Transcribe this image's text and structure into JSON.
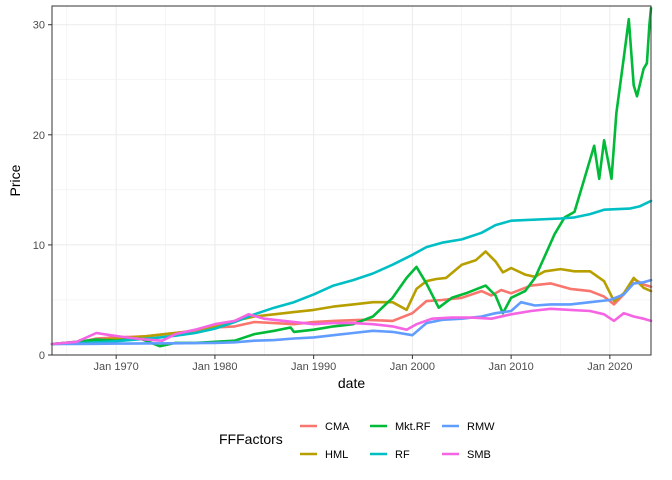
{
  "chart_data": {
    "type": "line",
    "xlabel": "date",
    "ylabel": "Price",
    "xlim": [
      "1963-07",
      "2024-03"
    ],
    "ylim": [
      0,
      31.7
    ],
    "x_ticks": [
      {
        "date": "1970-01",
        "label": "Jan 1970"
      },
      {
        "date": "1980-01",
        "label": "Jan 1980"
      },
      {
        "date": "1990-01",
        "label": "Jan 1990"
      },
      {
        "date": "2000-01",
        "label": "Jan 2000"
      },
      {
        "date": "2010-01",
        "label": "Jan 2010"
      },
      {
        "date": "2020-01",
        "label": "Jan 2020"
      }
    ],
    "y_ticks": [
      0,
      10,
      20,
      30
    ],
    "grid": true,
    "legend": {
      "title": "FFFactors",
      "position": "bottom",
      "entries": [
        "CMA",
        "HML",
        "Mkt.RF",
        "RF",
        "RMW",
        "SMB"
      ]
    },
    "series": [
      {
        "name": "CMA",
        "color": "#F8766D",
        "points": [
          [
            "1963-07",
            1.0
          ],
          [
            "1966-01",
            1.1
          ],
          [
            "1968-01",
            1.5
          ],
          [
            "1970-01",
            1.6
          ],
          [
            "1973-01",
            1.7
          ],
          [
            "1975-01",
            1.9
          ],
          [
            "1978-01",
            2.2
          ],
          [
            "1980-01",
            2.5
          ],
          [
            "1982-01",
            2.6
          ],
          [
            "1984-01",
            3.0
          ],
          [
            "1986-01",
            2.9
          ],
          [
            "1988-01",
            2.8
          ],
          [
            "1990-01",
            3.0
          ],
          [
            "1992-01",
            3.1
          ],
          [
            "1995-01",
            3.2
          ],
          [
            "1998-01",
            3.1
          ],
          [
            "2000-01",
            3.8
          ],
          [
            "2001-06",
            4.9
          ],
          [
            "2003-01",
            5.0
          ],
          [
            "2005-01",
            5.2
          ],
          [
            "2007-01",
            5.8
          ],
          [
            "2008-01",
            5.4
          ],
          [
            "2009-01",
            5.9
          ],
          [
            "2010-01",
            5.6
          ],
          [
            "2012-01",
            6.3
          ],
          [
            "2014-01",
            6.5
          ],
          [
            "2016-01",
            6.0
          ],
          [
            "2018-01",
            5.8
          ],
          [
            "2019-06",
            5.3
          ],
          [
            "2020-06",
            4.6
          ],
          [
            "2021-06",
            5.5
          ],
          [
            "2022-06",
            6.9
          ],
          [
            "2023-06",
            6.4
          ],
          [
            "2024-03",
            6.2
          ]
        ]
      },
      {
        "name": "HML",
        "color": "#B79F00",
        "points": [
          [
            "1963-07",
            1.0
          ],
          [
            "1966-01",
            1.2
          ],
          [
            "1968-01",
            1.3
          ],
          [
            "1970-01",
            1.5
          ],
          [
            "1973-01",
            1.7
          ],
          [
            "1975-01",
            1.9
          ],
          [
            "1977-01",
            2.1
          ],
          [
            "1980-01",
            2.6
          ],
          [
            "1982-01",
            3.1
          ],
          [
            "1984-01",
            3.5
          ],
          [
            "1986-01",
            3.7
          ],
          [
            "1988-01",
            3.9
          ],
          [
            "1990-01",
            4.1
          ],
          [
            "1992-01",
            4.4
          ],
          [
            "1994-01",
            4.6
          ],
          [
            "1996-01",
            4.8
          ],
          [
            "1998-01",
            4.8
          ],
          [
            "1999-06",
            4.1
          ],
          [
            "2000-06",
            6.0
          ],
          [
            "2001-06",
            6.7
          ],
          [
            "2002-06",
            6.9
          ],
          [
            "2003-06",
            7.0
          ],
          [
            "2005-01",
            8.2
          ],
          [
            "2006-06",
            8.6
          ],
          [
            "2007-06",
            9.4
          ],
          [
            "2008-06",
            8.5
          ],
          [
            "2009-03",
            7.5
          ],
          [
            "2010-01",
            7.9
          ],
          [
            "2011-06",
            7.3
          ],
          [
            "2012-06",
            7.1
          ],
          [
            "2013-06",
            7.6
          ],
          [
            "2015-01",
            7.8
          ],
          [
            "2016-06",
            7.6
          ],
          [
            "2018-01",
            7.6
          ],
          [
            "2019-06",
            6.7
          ],
          [
            "2020-06",
            4.9
          ],
          [
            "2021-06",
            5.6
          ],
          [
            "2022-06",
            7.0
          ],
          [
            "2023-06",
            6.1
          ],
          [
            "2024-03",
            5.8
          ]
        ]
      },
      {
        "name": "Mkt.RF",
        "color": "#00BA38",
        "points": [
          [
            "1963-07",
            1.0
          ],
          [
            "1966-01",
            1.2
          ],
          [
            "1968-01",
            1.4
          ],
          [
            "1970-01",
            1.3
          ],
          [
            "1972-06",
            1.5
          ],
          [
            "1974-06",
            0.8
          ],
          [
            "1976-01",
            1.1
          ],
          [
            "1978-01",
            1.1
          ],
          [
            "1980-01",
            1.2
          ],
          [
            "1982-01",
            1.3
          ],
          [
            "1984-01",
            1.9
          ],
          [
            "1986-01",
            2.2
          ],
          [
            "1987-09",
            2.5
          ],
          [
            "1988-01",
            2.1
          ],
          [
            "1990-01",
            2.3
          ],
          [
            "1992-01",
            2.6
          ],
          [
            "1994-01",
            2.8
          ],
          [
            "1996-01",
            3.5
          ],
          [
            "1998-01",
            5.2
          ],
          [
            "1999-06",
            7.0
          ],
          [
            "2000-06",
            8.0
          ],
          [
            "2001-06",
            6.5
          ],
          [
            "2002-09",
            4.3
          ],
          [
            "2004-01",
            5.2
          ],
          [
            "2005-06",
            5.6
          ],
          [
            "2007-06",
            6.3
          ],
          [
            "2008-06",
            5.4
          ],
          [
            "2009-03",
            3.8
          ],
          [
            "2010-01",
            5.2
          ],
          [
            "2011-06",
            5.8
          ],
          [
            "2012-06",
            7.0
          ],
          [
            "2013-06",
            9.0
          ],
          [
            "2014-06",
            11.0
          ],
          [
            "2015-06",
            12.5
          ],
          [
            "2016-06",
            13.0
          ],
          [
            "2017-06",
            16.0
          ],
          [
            "2018-06",
            19.0
          ],
          [
            "2018-12",
            16.0
          ],
          [
            "2019-06",
            19.5
          ],
          [
            "2020-03",
            16.0
          ],
          [
            "2020-09",
            22.0
          ],
          [
            "2021-06",
            27.0
          ],
          [
            "2021-12",
            30.5
          ],
          [
            "2022-06",
            24.5
          ],
          [
            "2022-10",
            23.5
          ],
          [
            "2023-06",
            26.0
          ],
          [
            "2023-10",
            26.5
          ],
          [
            "2024-01",
            30.0
          ],
          [
            "2024-03",
            31.5
          ]
        ]
      },
      {
        "name": "RF",
        "color": "#00BFC4",
        "points": [
          [
            "1963-07",
            1.0
          ],
          [
            "1966-01",
            1.06
          ],
          [
            "1968-01",
            1.15
          ],
          [
            "1970-01",
            1.25
          ],
          [
            "1972-01",
            1.4
          ],
          [
            "1974-01",
            1.55
          ],
          [
            "1976-01",
            1.75
          ],
          [
            "1978-01",
            2.0
          ],
          [
            "1980-01",
            2.4
          ],
          [
            "1982-01",
            3.0
          ],
          [
            "1984-01",
            3.7
          ],
          [
            "1986-01",
            4.3
          ],
          [
            "1988-01",
            4.8
          ],
          [
            "1990-01",
            5.5
          ],
          [
            "1992-01",
            6.3
          ],
          [
            "1994-01",
            6.8
          ],
          [
            "1996-01",
            7.4
          ],
          [
            "1998-01",
            8.2
          ],
          [
            "2000-01",
            9.1
          ],
          [
            "2001-06",
            9.8
          ],
          [
            "2003-01",
            10.2
          ],
          [
            "2005-01",
            10.5
          ],
          [
            "2007-01",
            11.1
          ],
          [
            "2008-06",
            11.8
          ],
          [
            "2010-01",
            12.2
          ],
          [
            "2015-01",
            12.4
          ],
          [
            "2016-06",
            12.5
          ],
          [
            "2018-01",
            12.8
          ],
          [
            "2019-06",
            13.2
          ],
          [
            "2022-01",
            13.3
          ],
          [
            "2023-01",
            13.5
          ],
          [
            "2024-03",
            14.0
          ]
        ]
      },
      {
        "name": "RMW",
        "color": "#619CFF",
        "points": [
          [
            "1963-07",
            1.0
          ],
          [
            "1966-01",
            1.0
          ],
          [
            "1968-01",
            1.02
          ],
          [
            "1970-01",
            1.04
          ],
          [
            "1973-01",
            1.05
          ],
          [
            "1976-01",
            1.06
          ],
          [
            "1978-01",
            1.08
          ],
          [
            "1980-01",
            1.1
          ],
          [
            "1982-01",
            1.15
          ],
          [
            "1984-01",
            1.3
          ],
          [
            "1986-01",
            1.35
          ],
          [
            "1988-01",
            1.5
          ],
          [
            "1990-01",
            1.6
          ],
          [
            "1992-01",
            1.8
          ],
          [
            "1994-01",
            2.0
          ],
          [
            "1996-01",
            2.2
          ],
          [
            "1998-01",
            2.1
          ],
          [
            "2000-01",
            1.8
          ],
          [
            "2001-06",
            2.9
          ],
          [
            "2003-01",
            3.2
          ],
          [
            "2005-01",
            3.3
          ],
          [
            "2007-01",
            3.5
          ],
          [
            "2008-06",
            3.8
          ],
          [
            "2010-01",
            4.0
          ],
          [
            "2011-01",
            4.8
          ],
          [
            "2012-06",
            4.5
          ],
          [
            "2014-01",
            4.6
          ],
          [
            "2016-01",
            4.6
          ],
          [
            "2018-01",
            4.8
          ],
          [
            "2020-01",
            5.0
          ],
          [
            "2021-06",
            5.5
          ],
          [
            "2022-06",
            6.5
          ],
          [
            "2023-06",
            6.6
          ],
          [
            "2024-03",
            6.8
          ]
        ]
      },
      {
        "name": "SMB",
        "color": "#F564E3",
        "points": [
          [
            "1963-07",
            1.0
          ],
          [
            "1966-01",
            1.2
          ],
          [
            "1968-01",
            2.0
          ],
          [
            "1969-06",
            1.8
          ],
          [
            "1971-01",
            1.6
          ],
          [
            "1973-01",
            1.4
          ],
          [
            "1974-09",
            1.3
          ],
          [
            "1976-01",
            1.9
          ],
          [
            "1978-01",
            2.3
          ],
          [
            "1980-01",
            2.8
          ],
          [
            "1982-01",
            3.1
          ],
          [
            "1983-06",
            3.7
          ],
          [
            "1985-01",
            3.3
          ],
          [
            "1987-01",
            3.1
          ],
          [
            "1990-01",
            2.8
          ],
          [
            "1992-01",
            2.9
          ],
          [
            "1994-01",
            2.9
          ],
          [
            "1996-01",
            2.8
          ],
          [
            "1998-01",
            2.6
          ],
          [
            "1999-06",
            2.3
          ],
          [
            "2000-06",
            2.8
          ],
          [
            "2002-01",
            3.3
          ],
          [
            "2004-01",
            3.4
          ],
          [
            "2006-01",
            3.4
          ],
          [
            "2008-01",
            3.3
          ],
          [
            "2010-01",
            3.7
          ],
          [
            "2012-01",
            4.0
          ],
          [
            "2014-01",
            4.2
          ],
          [
            "2016-01",
            4.1
          ],
          [
            "2018-01",
            4.0
          ],
          [
            "2019-06",
            3.7
          ],
          [
            "2020-06",
            3.1
          ],
          [
            "2021-06",
            3.8
          ],
          [
            "2022-06",
            3.5
          ],
          [
            "2023-06",
            3.3
          ],
          [
            "2024-03",
            3.1
          ]
        ]
      }
    ]
  }
}
